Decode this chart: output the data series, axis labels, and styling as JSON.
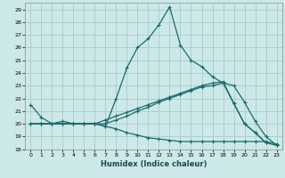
{
  "xlabel": "Humidex (Indice chaleur)",
  "xlim": [
    -0.5,
    23.5
  ],
  "ylim": [
    18,
    29.5
  ],
  "yticks": [
    18,
    19,
    20,
    21,
    22,
    23,
    24,
    25,
    26,
    27,
    28,
    29
  ],
  "xticks": [
    0,
    1,
    2,
    3,
    4,
    5,
    6,
    7,
    8,
    9,
    10,
    11,
    12,
    13,
    14,
    15,
    16,
    17,
    18,
    19,
    20,
    21,
    22,
    23
  ],
  "bg_color": "#cce8e8",
  "grid_color": "#aacccc",
  "line_color": "#1a6b6b",
  "line1_x": [
    0,
    1,
    2,
    3,
    4,
    5,
    6,
    7,
    8,
    9,
    10,
    11,
    12,
    13,
    14,
    15,
    16,
    17,
    18,
    19,
    20,
    21,
    22
  ],
  "line1_y": [
    21.5,
    20.5,
    20.0,
    20.2,
    20.0,
    20.0,
    20.0,
    19.8,
    22.0,
    24.4,
    26.0,
    26.7,
    27.8,
    29.2,
    26.2,
    25.0,
    24.5,
    23.7,
    23.2,
    21.6,
    20.0,
    19.3,
    18.5
  ],
  "line2_x": [
    0,
    1,
    2,
    3,
    4,
    5,
    6,
    7,
    8,
    9,
    10,
    11,
    12,
    13,
    14,
    15,
    16,
    17,
    18,
    19,
    20,
    21,
    22,
    23
  ],
  "line2_y": [
    20.0,
    20.0,
    20.0,
    20.0,
    20.0,
    20.0,
    20.0,
    20.0,
    20.3,
    20.6,
    21.0,
    21.3,
    21.7,
    22.0,
    22.3,
    22.6,
    22.9,
    23.0,
    23.2,
    23.0,
    21.7,
    20.2,
    19.0,
    18.3
  ],
  "line3_x": [
    0,
    1,
    2,
    3,
    4,
    5,
    6,
    7,
    8,
    9,
    10,
    11,
    12,
    13,
    14,
    15,
    16,
    17,
    18,
    19,
    20,
    21,
    22,
    23
  ],
  "line3_y": [
    20.0,
    20.0,
    20.0,
    20.0,
    20.0,
    20.0,
    20.0,
    19.8,
    19.6,
    19.3,
    19.1,
    18.9,
    18.8,
    18.7,
    18.6,
    18.6,
    18.6,
    18.6,
    18.6,
    18.6,
    18.6,
    18.6,
    18.6,
    18.4
  ],
  "line4_x": [
    0,
    1,
    2,
    3,
    4,
    5,
    6,
    7,
    8,
    9,
    10,
    11,
    12,
    13,
    14,
    15,
    16,
    17,
    18,
    19,
    20,
    21,
    22,
    23
  ],
  "line4_y": [
    20.0,
    20.0,
    20.0,
    20.0,
    20.0,
    20.0,
    20.0,
    20.3,
    20.6,
    20.9,
    21.2,
    21.5,
    21.8,
    22.1,
    22.4,
    22.7,
    23.0,
    23.2,
    23.3,
    21.6,
    20.0,
    19.3,
    18.5,
    18.3
  ]
}
